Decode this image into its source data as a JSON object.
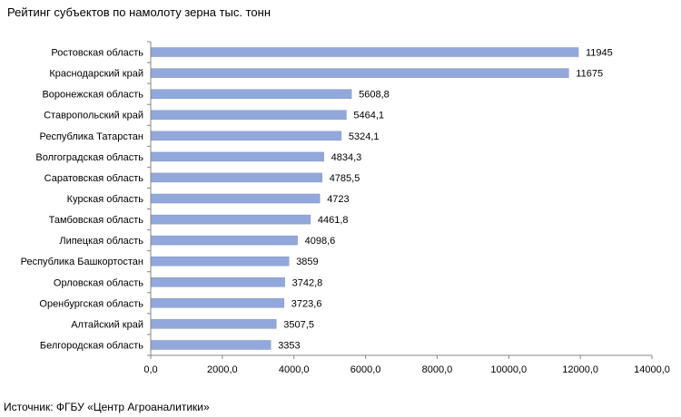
{
  "chart_data": {
    "type": "bar",
    "orientation": "horizontal",
    "title": "Рейтинг субъектов по намолоту зерна тыс. тонн",
    "categories": [
      "Ростовская область",
      "Краснодарский край",
      "Воронежская область",
      "Ставропольский край",
      "Республика Татарстан",
      "Волгоградская область",
      "Саратовская область",
      "Курская область",
      "Тамбовская область",
      "Липецкая область",
      "Республика Башкортостан",
      "Орловская область",
      "Оренбургская область",
      "Алтайский край",
      "Белгородская область"
    ],
    "values": [
      11945,
      11675,
      5608.8,
      5464.1,
      5324.1,
      4834.3,
      4785.5,
      4723,
      4461.8,
      4098.6,
      3859,
      3742.8,
      3723.6,
      3507.5,
      3353
    ],
    "value_labels": [
      "11945",
      "11675",
      "5608,8",
      "5464,1",
      "5324,1",
      "4834,3",
      "4785,5",
      "4723",
      "4461,8",
      "4098,6",
      "3859",
      "3742,8",
      "3723,6",
      "3507,5",
      "3353"
    ],
    "xlim": [
      0,
      14000
    ],
    "xticks": [
      0,
      2000,
      4000,
      6000,
      8000,
      10000,
      12000,
      14000
    ],
    "xtick_labels": [
      "0,0",
      "2000,0",
      "4000,0",
      "6000,0",
      "8000,0",
      "10000,0",
      "12000,0",
      "14000,0"
    ],
    "grid": false,
    "bar_color": "#92a8db"
  },
  "source": "Источник: ФГБУ «Центр Агроаналитики»"
}
